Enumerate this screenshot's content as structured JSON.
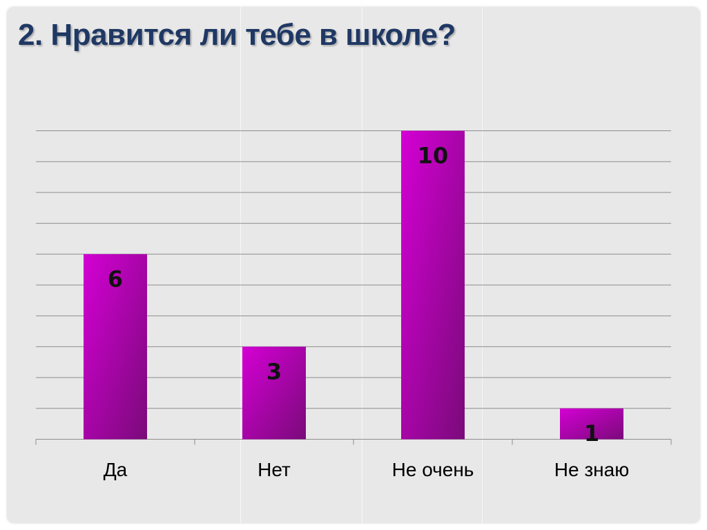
{
  "slide": {
    "title": "2. Нравится ли тебе в школе?"
  },
  "colors": {
    "background": "#e8e8e8",
    "title": "#1f3864",
    "bar_light": "#d400d4",
    "bar_dark": "#7a0a7a",
    "gridline": "#8c8c8c"
  },
  "chart_data": {
    "type": "bar",
    "title": "",
    "xlabel": "",
    "ylabel": "",
    "categories": [
      "Да",
      "Нет",
      "Не очень",
      "Не знаю"
    ],
    "values": [
      6,
      3,
      10,
      1
    ],
    "data_labels": [
      "6",
      "3",
      "10",
      "1"
    ],
    "ylim": [
      0,
      10
    ],
    "gridlines": true,
    "gridline_step": 1,
    "legend": "none"
  }
}
